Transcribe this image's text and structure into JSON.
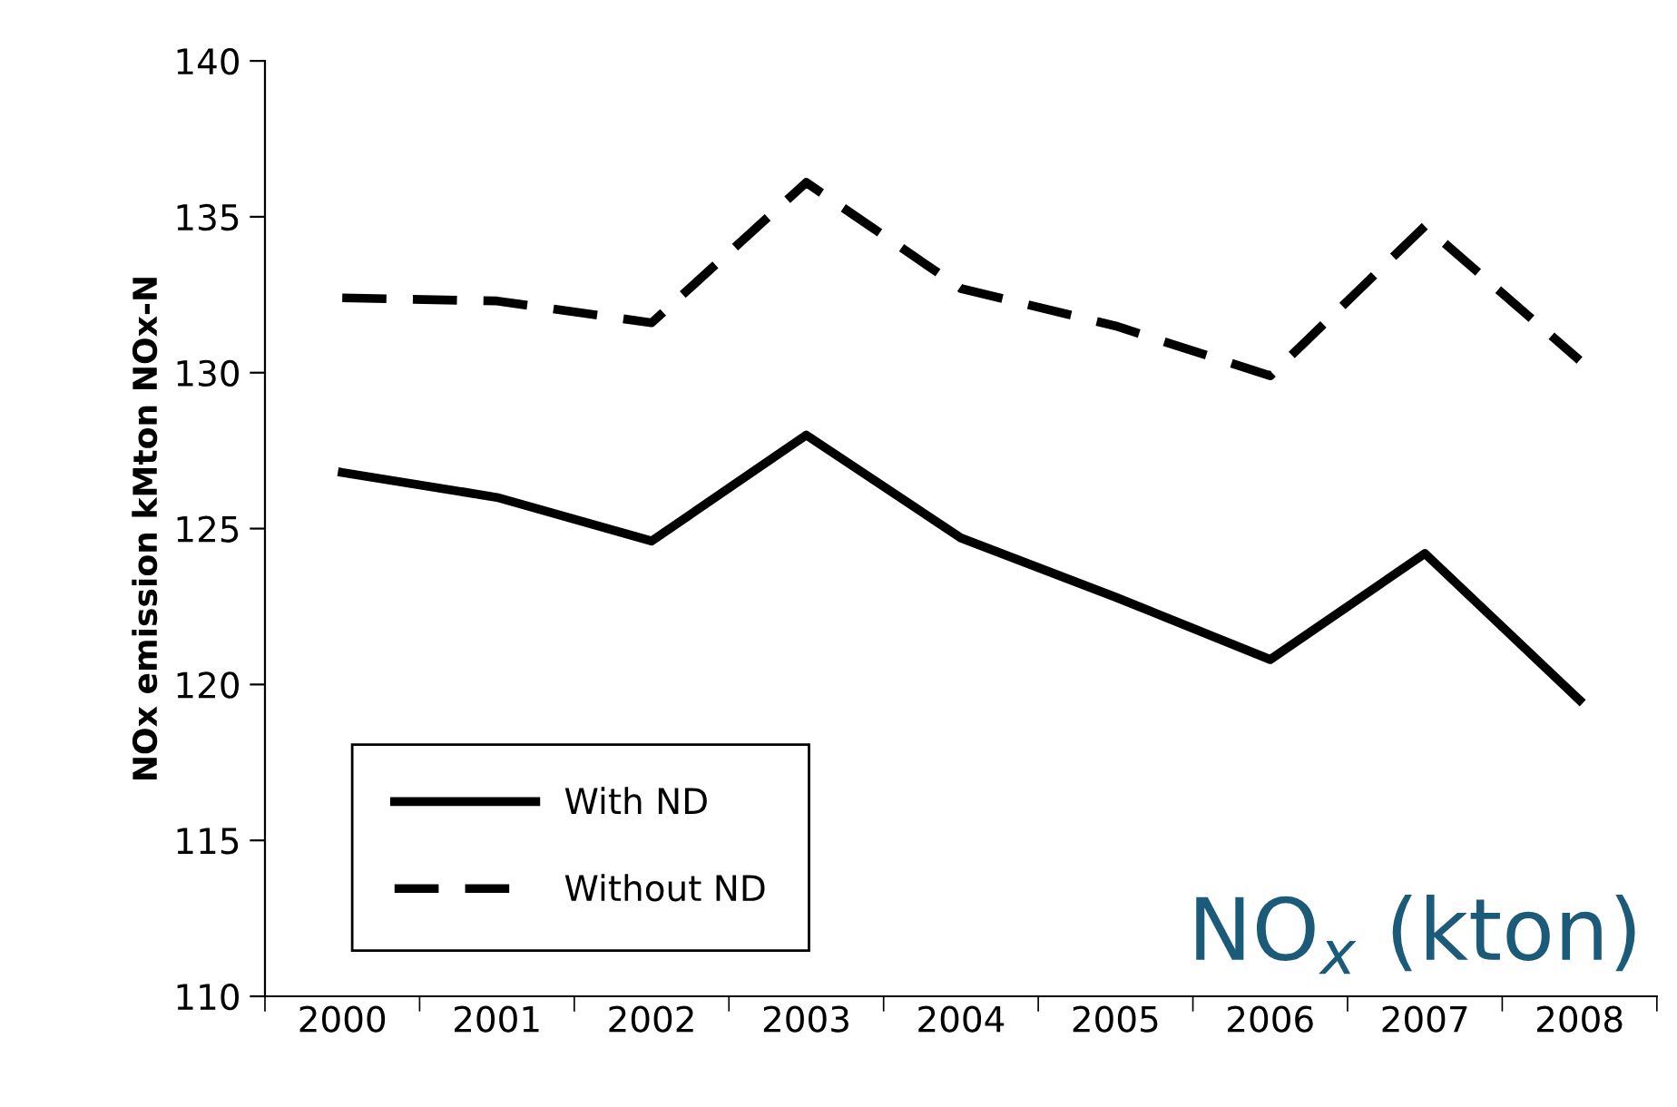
{
  "chart_data": {
    "type": "line",
    "ylabel": "NOx emission kMton NOx-N",
    "categories": [
      "2000",
      "2001",
      "2002",
      "2003",
      "2004",
      "2005",
      "2006",
      "2007",
      "2008"
    ],
    "series": [
      {
        "name": "With ND",
        "color": "#000000",
        "line_style": "solid",
        "values": [
          126.8,
          126.0,
          124.6,
          128.0,
          124.7,
          122.8,
          120.8,
          124.2,
          119.5
        ]
      },
      {
        "name": "Without ND",
        "color": "#000000",
        "line_style": "dashed",
        "values": [
          132.4,
          132.3,
          131.6,
          136.1,
          132.7,
          131.5,
          129.9,
          134.7,
          130.4
        ]
      }
    ],
    "ylim": [
      110,
      140
    ],
    "yticks": [
      110,
      115,
      120,
      125,
      130,
      135,
      140
    ],
    "grid": false,
    "legend": "bottom left",
    "marker": "none",
    "annotations": [
      "NO$_{x}$ (kton)"
    ]
  }
}
